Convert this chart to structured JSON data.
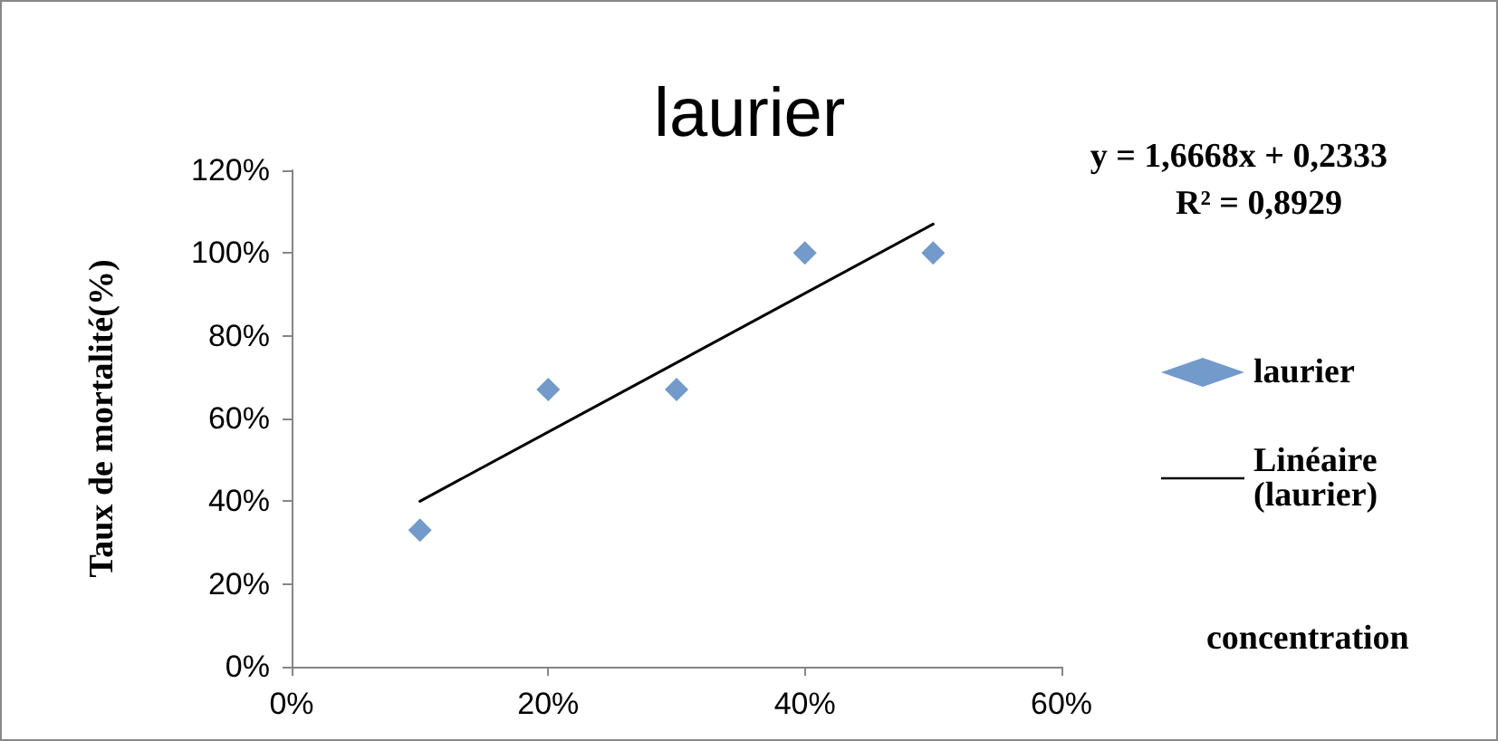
{
  "chart_data": {
    "type": "scatter",
    "title": "laurier",
    "xlabel": "concentration",
    "ylabel": "Taux de mortalité(%)",
    "annotations": [
      "y = 1,6668x + 0,2333",
      "R² = 0,8929"
    ],
    "x": [
      10,
      20,
      30,
      40,
      50
    ],
    "series": [
      {
        "name": "laurier",
        "color": "#4f81bd",
        "values": [
          33,
          67,
          67,
          100,
          100
        ],
        "marker": "diamond"
      },
      {
        "name": "Linéaire (laurier)",
        "type": "line",
        "color": "#000000",
        "x": [
          10,
          50
        ],
        "values": [
          40,
          107
        ],
        "marker": "none",
        "line_style": "solid"
      }
    ],
    "xlim": [
      0,
      60
    ],
    "xticks": [
      {
        "value": 0,
        "label": "0%"
      },
      {
        "value": 20,
        "label": "20%"
      },
      {
        "value": 40,
        "label": "40%"
      },
      {
        "value": 60,
        "label": "60%"
      }
    ],
    "ylim": [
      0,
      120
    ],
    "yticks": [
      {
        "value": 0,
        "label": "0%"
      },
      {
        "value": 20,
        "label": "20%"
      },
      {
        "value": 40,
        "label": "40%"
      },
      {
        "value": 60,
        "label": "60%"
      },
      {
        "value": 80,
        "label": "80%"
      },
      {
        "value": 100,
        "label": "100%"
      },
      {
        "value": 120,
        "label": "120%"
      }
    ],
    "grid": false,
    "legend": "right"
  }
}
